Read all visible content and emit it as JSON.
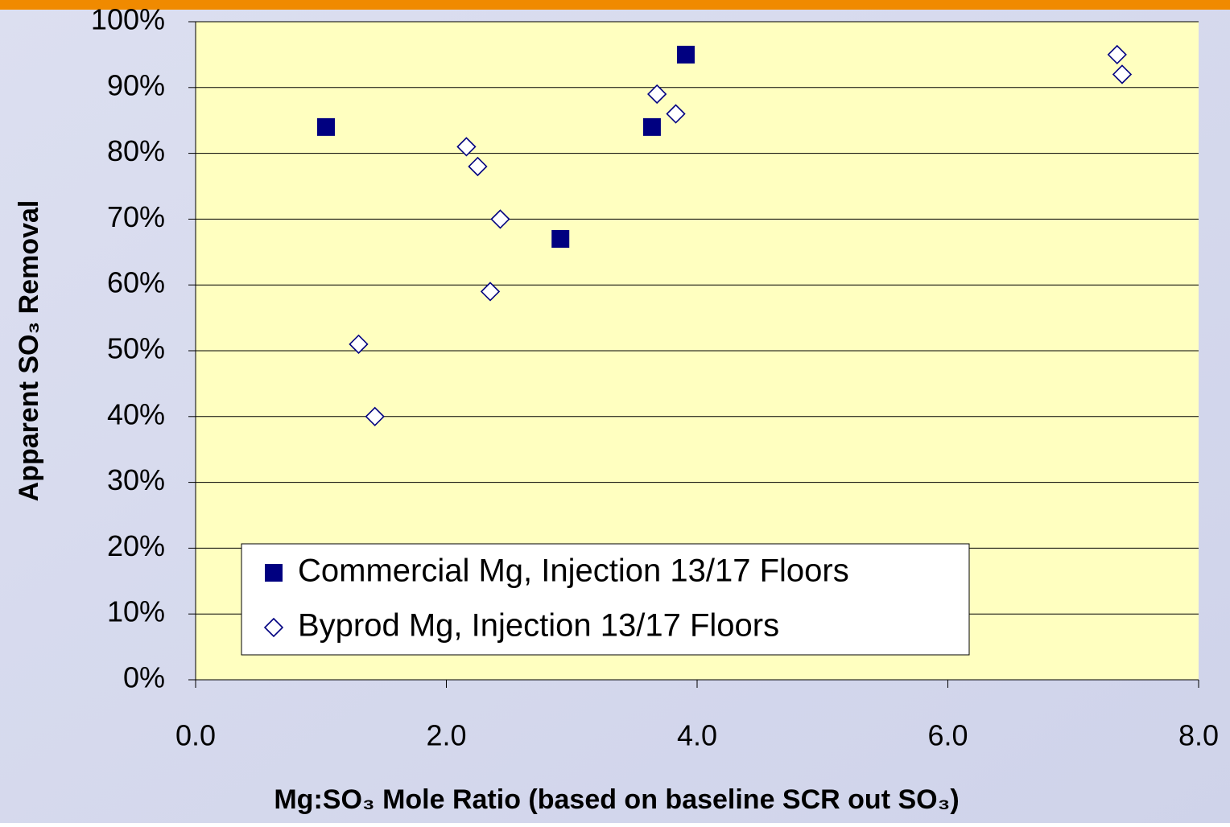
{
  "chart_data": {
    "type": "scatter",
    "xlabel": "Mg:SO₃ Mole Ratio (based on baseline SCR out SO₃)",
    "ylabel": "Apparent SO₃ Removal",
    "xlim": [
      0,
      8
    ],
    "ylim": [
      0,
      100
    ],
    "xticks": [
      {
        "value": 0,
        "label": "0.0"
      },
      {
        "value": 2,
        "label": "2.0"
      },
      {
        "value": 4,
        "label": "4.0"
      },
      {
        "value": 6,
        "label": "6.0"
      },
      {
        "value": 8,
        "label": "8.0"
      }
    ],
    "yticks": [
      {
        "value": 0,
        "label": "0%"
      },
      {
        "value": 10,
        "label": "10%"
      },
      {
        "value": 20,
        "label": "20%"
      },
      {
        "value": 30,
        "label": "30%"
      },
      {
        "value": 40,
        "label": "40%"
      },
      {
        "value": 50,
        "label": "50%"
      },
      {
        "value": 60,
        "label": "60%"
      },
      {
        "value": 70,
        "label": "70%"
      },
      {
        "value": 80,
        "label": "80%"
      },
      {
        "value": 90,
        "label": "90%"
      },
      {
        "value": 100,
        "label": "100%"
      }
    ],
    "grid": true,
    "legend": "lower left",
    "series": [
      {
        "name": "Commercial Mg, Injection 13/17 Floors",
        "color": "#000080",
        "marker": "square",
        "x": [
          1.04,
          3.91,
          3.64,
          2.91
        ],
        "values": [
          84,
          95,
          84,
          67
        ]
      },
      {
        "name": "Byprod Mg, Injection 13/17 Floors",
        "color": "#000080",
        "marker": "diamond",
        "x": [
          2.16,
          2.25,
          2.43,
          2.35,
          1.3,
          1.43,
          3.68,
          3.83,
          7.35,
          7.39
        ],
        "values": [
          81,
          78,
          70,
          59,
          51,
          40,
          89,
          86,
          95,
          92
        ]
      }
    ]
  }
}
